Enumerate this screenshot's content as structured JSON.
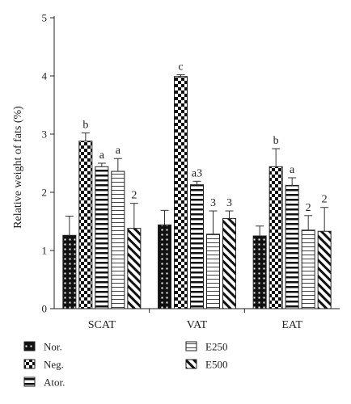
{
  "chart_data": {
    "type": "bar",
    "ylabel": "Relative weight of fats (%)",
    "xlabel": "",
    "ylim": [
      0,
      5
    ],
    "yticks": [
      0,
      1,
      2,
      3,
      4,
      5
    ],
    "categories": [
      "SCAT",
      "VAT",
      "EAT"
    ],
    "series": [
      {
        "name": "Nor.",
        "pattern": "dots",
        "values": [
          1.26,
          1.44,
          1.25
        ],
        "errors": [
          0.33,
          0.25,
          0.17
        ],
        "annotations": [
          "",
          "",
          ""
        ]
      },
      {
        "name": "Neg.",
        "pattern": "checker",
        "values": [
          2.88,
          3.99,
          2.44
        ],
        "errors": [
          0.14,
          0.03,
          0.31
        ],
        "annotations": [
          "b",
          "c",
          "b"
        ]
      },
      {
        "name": "Ator.",
        "pattern": "hstripes",
        "values": [
          2.44,
          2.13,
          2.12
        ],
        "errors": [
          0.06,
          0.06,
          0.13
        ],
        "annotations": [
          "a",
          "a3",
          "a"
        ]
      },
      {
        "name": "E250",
        "pattern": "box",
        "values": [
          2.36,
          1.28,
          1.35
        ],
        "errors": [
          0.22,
          0.4,
          0.25
        ],
        "annotations": [
          "a",
          "3",
          "2"
        ]
      },
      {
        "name": "E500",
        "pattern": "diag",
        "values": [
          1.38,
          1.55,
          1.33
        ],
        "errors": [
          0.43,
          0.13,
          0.41
        ],
        "annotations": [
          "2",
          "3",
          "2"
        ]
      }
    ],
    "legend_position": "bottom",
    "grid": false
  }
}
